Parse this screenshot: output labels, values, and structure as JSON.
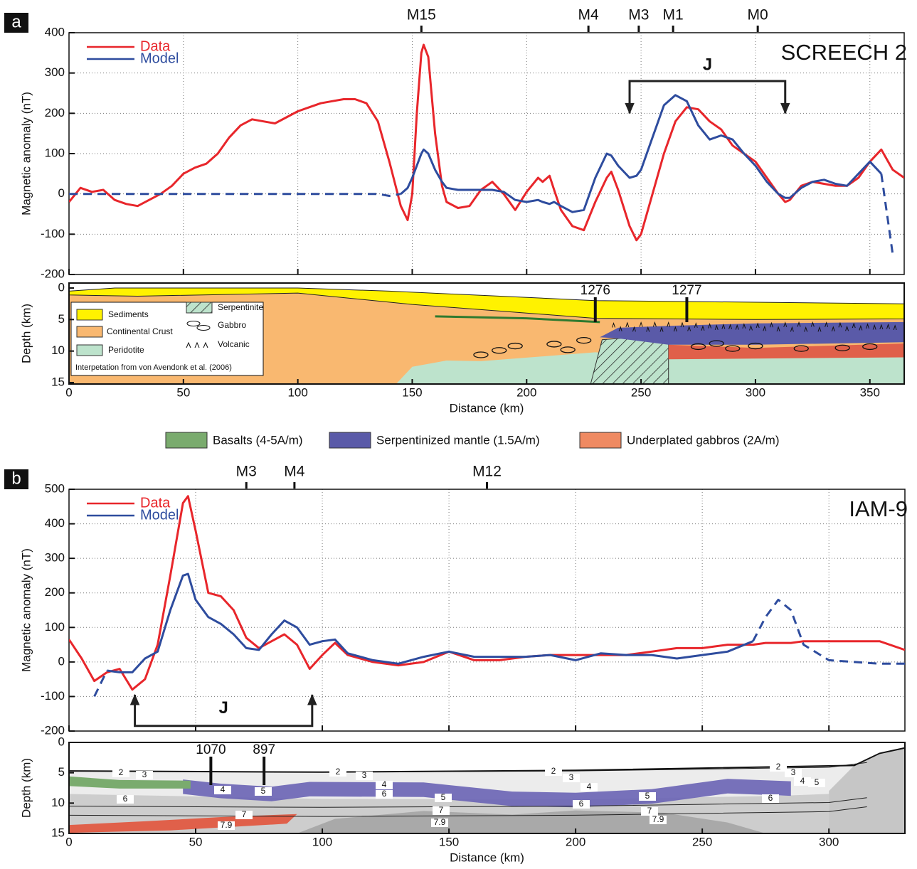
{
  "panel_labels": [
    "a",
    "b"
  ],
  "units_legend": [
    {
      "name": "Basalts (4-5A/m)",
      "color": "#7aab6e"
    },
    {
      "name": "Serpentinized mantle (1.5A/m)",
      "color": "#5a5aa8"
    },
    {
      "name": "Underplated gabbros (2A/m)",
      "color": "#ef8a62"
    }
  ],
  "chart_data": [
    {
      "type": "line",
      "title": "SCREECH 2",
      "ylabel": "Magnetic anomaly (nT)",
      "x": [
        0,
        5,
        10,
        15,
        20,
        25,
        30,
        35,
        40,
        45,
        50,
        55,
        60,
        65,
        70,
        75,
        80,
        85,
        90,
        95,
        100,
        105,
        110,
        115,
        120,
        125,
        130,
        135,
        140,
        145,
        148,
        150,
        152,
        154,
        155,
        157,
        160,
        163,
        165,
        170,
        175,
        180,
        185,
        190,
        195,
        200,
        205,
        207,
        210,
        212,
        215,
        220,
        225,
        230,
        235,
        237,
        240,
        245,
        248,
        250,
        255,
        260,
        265,
        270,
        275,
        280,
        285,
        290,
        295,
        300,
        305,
        310,
        313,
        315,
        320,
        325,
        330,
        335,
        340,
        345,
        350,
        355,
        360,
        365
      ],
      "series": [
        {
          "name": "Data",
          "color": "#e8262b",
          "values": [
            -20,
            15,
            5,
            10,
            -15,
            -25,
            -30,
            -15,
            0,
            20,
            50,
            65,
            75,
            100,
            140,
            170,
            185,
            180,
            175,
            190,
            205,
            215,
            225,
            230,
            235,
            235,
            225,
            180,
            80,
            -30,
            -65,
            0,
            200,
            350,
            370,
            340,
            150,
            20,
            -20,
            -35,
            -30,
            10,
            30,
            0,
            -40,
            5,
            40,
            30,
            45,
            10,
            -40,
            -80,
            -90,
            -20,
            40,
            55,
            10,
            -80,
            -115,
            -100,
            0,
            100,
            180,
            215,
            210,
            180,
            160,
            120,
            100,
            80,
            40,
            0,
            -20,
            -15,
            20,
            30,
            25,
            20,
            20,
            40,
            80,
            110,
            60,
            40
          ]
        },
        {
          "name": "Model",
          "color": "#2e4c9e",
          "values": [
            0,
            0,
            0,
            0,
            0,
            0,
            0,
            0,
            0,
            0,
            0,
            0,
            0,
            0,
            0,
            0,
            0,
            0,
            0,
            0,
            0,
            0,
            0,
            0,
            0,
            0,
            0,
            0,
            -5,
            0,
            15,
            40,
            70,
            100,
            110,
            100,
            60,
            30,
            15,
            10,
            10,
            10,
            10,
            5,
            -15,
            -20,
            -15,
            -20,
            -25,
            -20,
            -30,
            -45,
            -40,
            40,
            100,
            95,
            70,
            40,
            45,
            60,
            140,
            220,
            245,
            230,
            170,
            135,
            145,
            135,
            100,
            70,
            30,
            0,
            -10,
            -10,
            15,
            30,
            35,
            25,
            20,
            50,
            80,
            50,
            -150,
            null
          ],
          "dashed": [
            true,
            true,
            true,
            true,
            true,
            true,
            true,
            true,
            true,
            true,
            true,
            true,
            true,
            true,
            true,
            true,
            true,
            true,
            true,
            true,
            true,
            true,
            true,
            true,
            true,
            true,
            true,
            true,
            true,
            true,
            false,
            false,
            false,
            false,
            false,
            false,
            false,
            false,
            false,
            false,
            false,
            false,
            false,
            false,
            false,
            false,
            false,
            false,
            false,
            false,
            false,
            false,
            false,
            false,
            false,
            false,
            false,
            false,
            false,
            false,
            false,
            false,
            false,
            false,
            false,
            false,
            false,
            false,
            false,
            false,
            false,
            false,
            false,
            false,
            false,
            false,
            false,
            false,
            false,
            false,
            false,
            true,
            true,
            true
          ]
        }
      ],
      "xlim": [
        0,
        365
      ],
      "ylim": [
        -200,
        400
      ],
      "yticks": [
        -200,
        -100,
        0,
        100,
        200,
        300,
        400
      ],
      "grid": true,
      "legend": "upper left",
      "markers": [
        {
          "label": "M15",
          "x": 154
        },
        {
          "label": "M4",
          "x": 227
        },
        {
          "label": "M3",
          "x": 249
        },
        {
          "label": "M1",
          "x": 264
        },
        {
          "label": "M0",
          "x": 301
        }
      ],
      "bracket": {
        "label": "J",
        "x": [
          245,
          313
        ],
        "arrows": "down"
      }
    },
    {
      "type": "section",
      "ylabel": "Depth (km)",
      "xlabel": "Distance (km)",
      "xlim": [
        0,
        365
      ],
      "xticks": [
        0,
        50,
        100,
        150,
        200,
        250,
        300,
        350
      ],
      "ylim": [
        0,
        15
      ],
      "yticks": [
        0,
        5,
        10,
        15
      ],
      "inverted": true,
      "drill_sites": [
        {
          "label": "1276",
          "x": 230
        },
        {
          "label": "1277",
          "x": 270
        }
      ],
      "legend_items": [
        "Sediments",
        "Continental Crust",
        "Peridotite",
        "Serpentinite",
        "Gabbro",
        "Volcanic"
      ],
      "note": "Interpetation from von Avendonk et al. (2006)"
    },
    {
      "type": "line",
      "title": "IAM-9",
      "ylabel": "Magnetic anomaly (nT)",
      "x": [
        0,
        5,
        10,
        15,
        20,
        25,
        30,
        35,
        40,
        45,
        47,
        50,
        55,
        60,
        65,
        70,
        75,
        80,
        85,
        90,
        95,
        100,
        105,
        110,
        120,
        130,
        140,
        150,
        160,
        170,
        180,
        190,
        200,
        210,
        220,
        230,
        240,
        250,
        260,
        270,
        275,
        280,
        285,
        290,
        300,
        310,
        320,
        330
      ],
      "series": [
        {
          "name": "Data",
          "color": "#e8262b",
          "values": [
            65,
            10,
            -55,
            -30,
            -20,
            -80,
            -50,
            50,
            250,
            460,
            480,
            380,
            200,
            190,
            150,
            70,
            40,
            60,
            80,
            50,
            -20,
            20,
            55,
            20,
            0,
            -10,
            0,
            30,
            5,
            5,
            15,
            20,
            20,
            20,
            20,
            30,
            40,
            40,
            50,
            50,
            55,
            55,
            55,
            60,
            60,
            60,
            60,
            35
          ]
        },
        {
          "name": "Model",
          "color": "#2e4c9e",
          "values": [
            null,
            null,
            -100,
            -25,
            -30,
            -30,
            10,
            30,
            150,
            250,
            255,
            180,
            130,
            110,
            80,
            40,
            35,
            80,
            120,
            100,
            50,
            60,
            65,
            25,
            5,
            -5,
            15,
            30,
            15,
            15,
            15,
            20,
            5,
            25,
            20,
            20,
            10,
            20,
            30,
            60,
            130,
            180,
            150,
            50,
            5,
            0,
            -5,
            -5
          ],
          "dashed": [
            true,
            true,
            true,
            true,
            false,
            false,
            false,
            false,
            false,
            false,
            false,
            false,
            false,
            false,
            false,
            false,
            false,
            false,
            false,
            false,
            false,
            false,
            false,
            false,
            false,
            false,
            false,
            false,
            false,
            false,
            false,
            false,
            false,
            false,
            false,
            false,
            false,
            false,
            false,
            true,
            true,
            true,
            true,
            true,
            true,
            true,
            true,
            true
          ]
        }
      ],
      "xlim": [
        0,
        330
      ],
      "ylim": [
        -200,
        500
      ],
      "yticks": [
        -200,
        -100,
        0,
        100,
        200,
        300,
        400,
        500
      ],
      "grid": true,
      "legend": "upper left",
      "markers": [
        {
          "label": "M3",
          "x": 70
        },
        {
          "label": "M4",
          "x": 89
        },
        {
          "label": "M12",
          "x": 165
        }
      ],
      "bracket": {
        "label": "J",
        "x": [
          26,
          96
        ],
        "arrows": "up"
      }
    },
    {
      "type": "section",
      "ylabel": "Depth (km)",
      "xlabel": "Distance (km)",
      "xlim": [
        0,
        330
      ],
      "xticks": [
        0,
        50,
        100,
        150,
        200,
        250,
        300
      ],
      "ylim": [
        0,
        15
      ],
      "yticks": [
        0,
        5,
        10,
        15
      ],
      "inverted": true,
      "drill_sites": [
        {
          "label": "1070",
          "x": 56
        },
        {
          "label": "897",
          "x": 77
        }
      ],
      "contour_labels": [
        2,
        3,
        6,
        4,
        5,
        7,
        7.9,
        2,
        3,
        4,
        6,
        5,
        7,
        7.9,
        2,
        3,
        4,
        6,
        5,
        7,
        7.9,
        2,
        3,
        4,
        5,
        6
      ]
    }
  ]
}
